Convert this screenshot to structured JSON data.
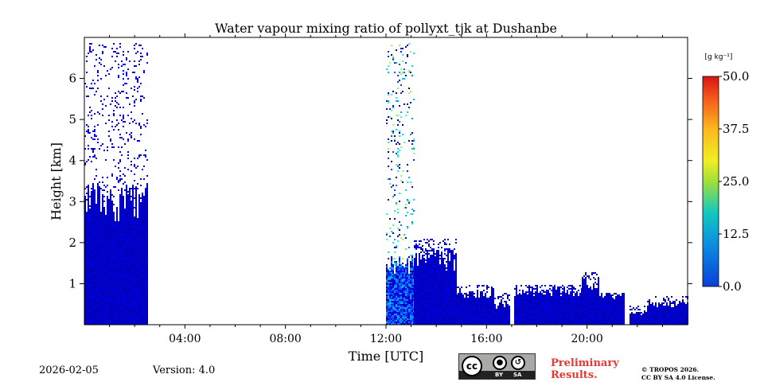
{
  "chart_data": {
    "type": "heatmap",
    "title": "Water vapour mixing ratio of pollyxt_tjk at Dushanbe",
    "xlabel": "Time [UTC]",
    "ylabel": "Height [km]",
    "xlim": [
      0,
      24
    ],
    "ylim": [
      0,
      7
    ],
    "x_ticks": [
      4,
      8,
      12,
      16,
      20
    ],
    "x_tick_labels": [
      "04:00",
      "08:00",
      "12:00",
      "16:00",
      "20:00"
    ],
    "y_ticks": [
      1,
      2,
      3,
      4,
      5,
      6
    ],
    "y_tick_labels": [
      "1",
      "2",
      "3",
      "4",
      "5",
      "6"
    ],
    "colorbar": {
      "unit_label": "[g kg⁻¹]",
      "range": [
        0,
        50
      ],
      "ticks": [
        0,
        12.5,
        25,
        37.5,
        50
      ],
      "tick_labels": [
        "0.0",
        "12.5",
        "25.0",
        "37.5",
        "50.0"
      ],
      "colormap": "jet"
    },
    "profiles": [
      {
        "t0": 0.0,
        "t1": 2.5,
        "top_km": 3.0,
        "value": 3,
        "spread": 2.5,
        "sparse_top_km": 6.9
      },
      {
        "t0": 12.0,
        "t1": 13.1,
        "top_km": 1.5,
        "value": 6,
        "spread": 14,
        "sparse_top_km": 6.9
      },
      {
        "t0": 13.1,
        "t1": 14.8,
        "top_km": 1.6,
        "value": 3,
        "spread": 2.5,
        "sparse_top_km": 2.1
      },
      {
        "t0": 14.8,
        "t1": 16.3,
        "top_km": 0.8,
        "value": 3,
        "spread": 2.5,
        "sparse_top_km": 1.0
      },
      {
        "t0": 16.3,
        "t1": 16.9,
        "top_km": 0.5,
        "value": 3,
        "spread": 2.5,
        "sparse_top_km": 0.8
      },
      {
        "t0": 17.1,
        "t1": 19.8,
        "top_km": 0.85,
        "value": 3,
        "spread": 2.5,
        "sparse_top_km": 1.0
      },
      {
        "t0": 19.8,
        "t1": 20.5,
        "top_km": 1.05,
        "value": 3,
        "spread": 2.5,
        "sparse_top_km": 1.3
      },
      {
        "t0": 20.5,
        "t1": 21.5,
        "top_km": 0.75,
        "value": 3,
        "spread": 2.5,
        "sparse_top_km": 0.8
      },
      {
        "t0": 21.7,
        "t1": 22.4,
        "top_km": 0.3,
        "value": 3,
        "spread": 2.5,
        "sparse_top_km": 0.5
      },
      {
        "t0": 22.4,
        "t1": 24.0,
        "top_km": 0.55,
        "value": 3,
        "spread": 2.5,
        "sparse_top_km": 0.7
      }
    ]
  },
  "footer": {
    "date": "2026-02-05",
    "version": "Version: 4.0",
    "preliminary_line1": "Preliminary",
    "preliminary_line2": "Results.",
    "copyright_line1": "© TROPOS 2026.",
    "copyright_line2": "CC BY SA 4.0 License.",
    "license_badge": {
      "cc": "cc",
      "by": "BY",
      "sa": "SA",
      "by_icon": "person-icon",
      "sa_icon": "share-alike-icon"
    }
  },
  "colors": {
    "text": "#000000",
    "preliminary": "#e53935",
    "badge_bg": "#a9aaa8"
  }
}
